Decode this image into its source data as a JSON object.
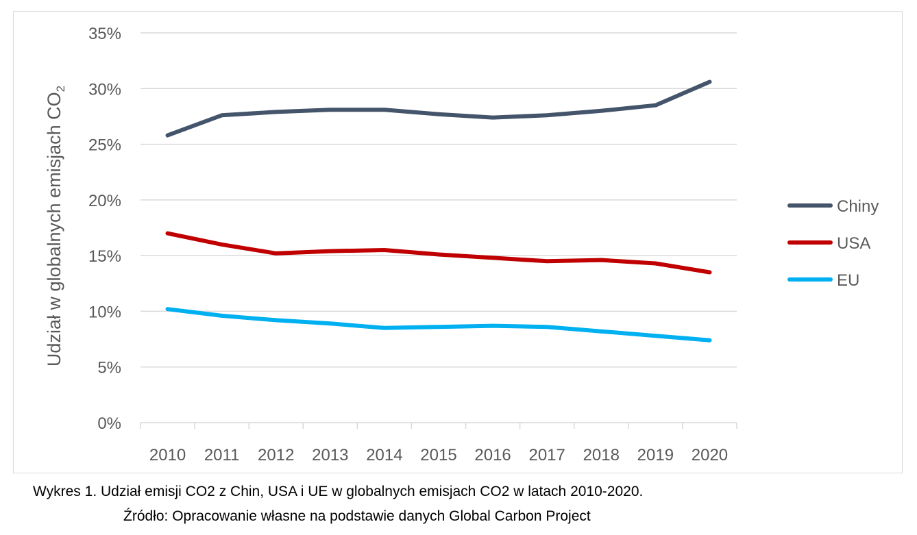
{
  "chart_data": {
    "type": "line",
    "title": "",
    "xlabel": "",
    "ylabel_main": "Udział w globalnych emisjach CO",
    "ylabel_sub": "2",
    "categories": [
      "2010",
      "2011",
      "2012",
      "2013",
      "2014",
      "2015",
      "2016",
      "2017",
      "2018",
      "2019",
      "2020"
    ],
    "ylim": [
      0,
      35
    ],
    "yticks": [
      0,
      5,
      10,
      15,
      20,
      25,
      30,
      35
    ],
    "ytick_labels": [
      "0%",
      "5%",
      "10%",
      "15%",
      "20%",
      "25%",
      "30%",
      "35%"
    ],
    "grid": true,
    "legend_position": "right",
    "series": [
      {
        "name": "Chiny",
        "color": "#44546a",
        "values": [
          25.8,
          27.6,
          27.9,
          28.1,
          28.1,
          27.7,
          27.4,
          27.6,
          28.0,
          28.5,
          30.6
        ]
      },
      {
        "name": "USA",
        "color": "#c00000",
        "values": [
          17.0,
          16.0,
          15.2,
          15.4,
          15.5,
          15.1,
          14.8,
          14.5,
          14.6,
          14.3,
          13.5
        ]
      },
      {
        "name": "EU",
        "color": "#00b0f0",
        "values": [
          10.2,
          9.6,
          9.2,
          8.9,
          8.5,
          8.6,
          8.7,
          8.6,
          8.2,
          7.8,
          7.4
        ]
      }
    ]
  },
  "captions": {
    "line1": "Wykres 1. Udział emisji CO2 z Chin, USA i UE w globalnych emisjach CO2 w latach 2010-2020.",
    "line2": "Źródło: Opracowanie własne na podstawie danych Global Carbon Project"
  }
}
